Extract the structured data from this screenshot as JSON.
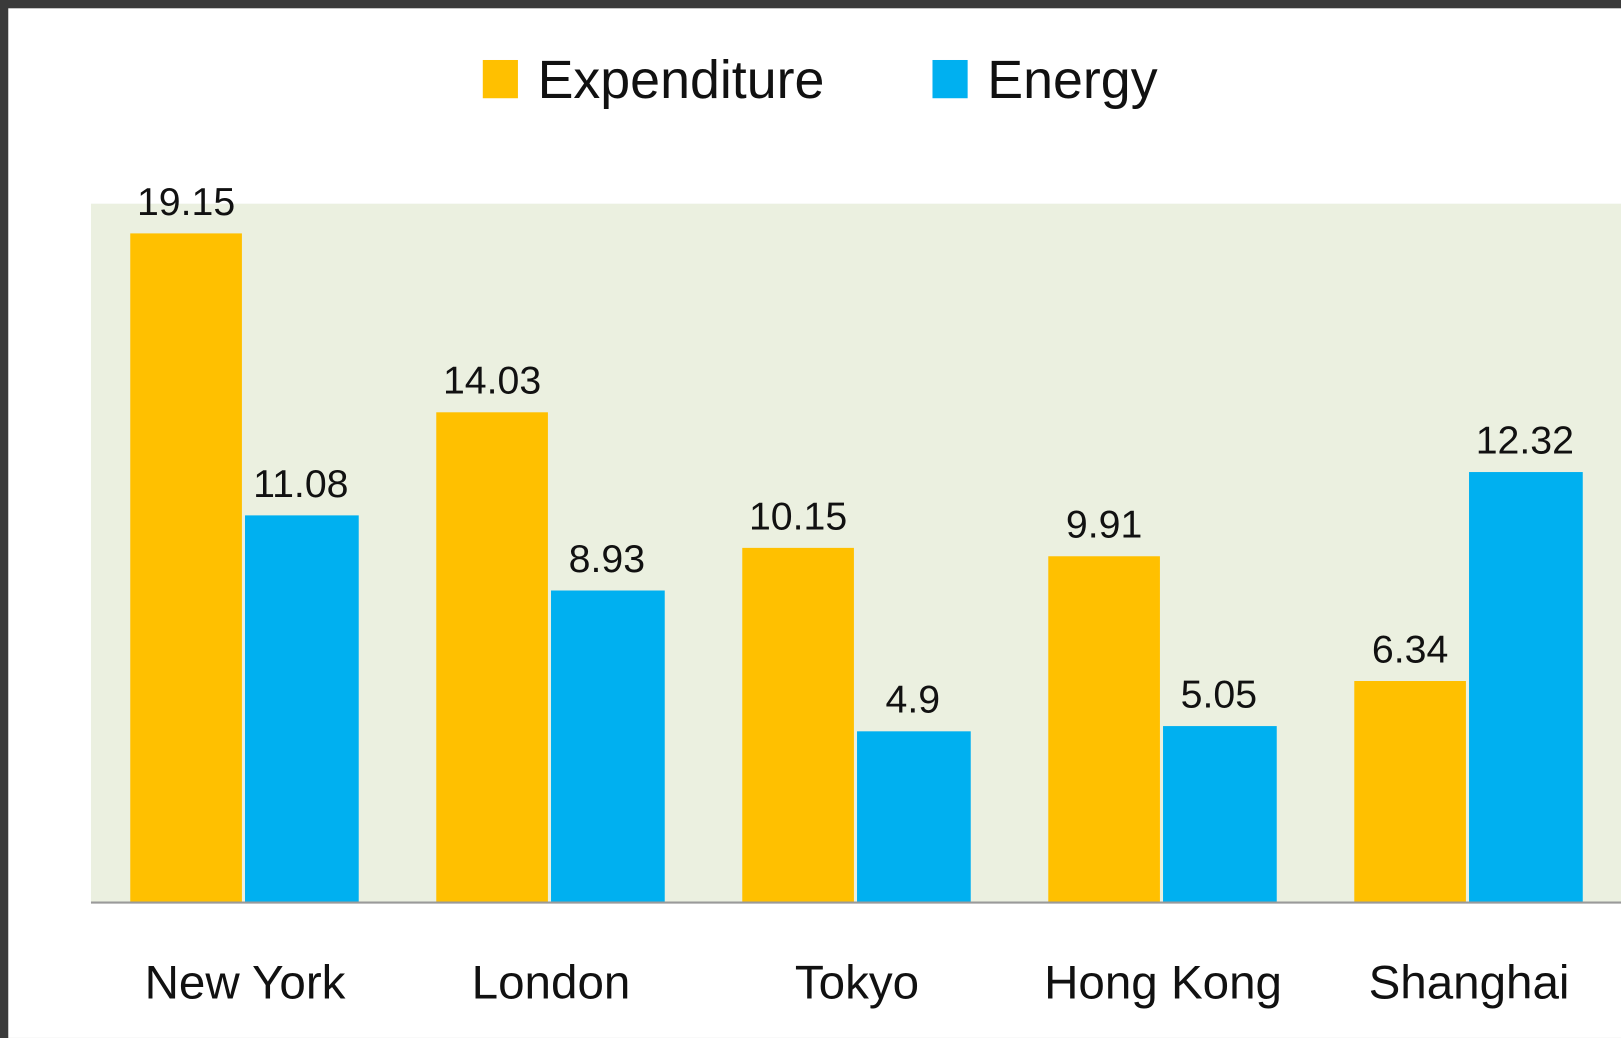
{
  "chart_data": {
    "type": "bar",
    "categories": [
      "New York",
      "London",
      "Tokyo",
      "Hong Kong",
      "Shanghai"
    ],
    "series": [
      {
        "name": "Expenditure",
        "color": "#ffc000",
        "values": [
          19.15,
          14.03,
          10.15,
          9.91,
          6.34
        ]
      },
      {
        "name": "Energy",
        "color": "#00b0f0",
        "values": [
          11.08,
          8.93,
          4.9,
          5.05,
          12.32
        ]
      }
    ],
    "ylim": [
      0,
      20
    ],
    "legend": "top",
    "plot_background": "#ebf0e0"
  }
}
